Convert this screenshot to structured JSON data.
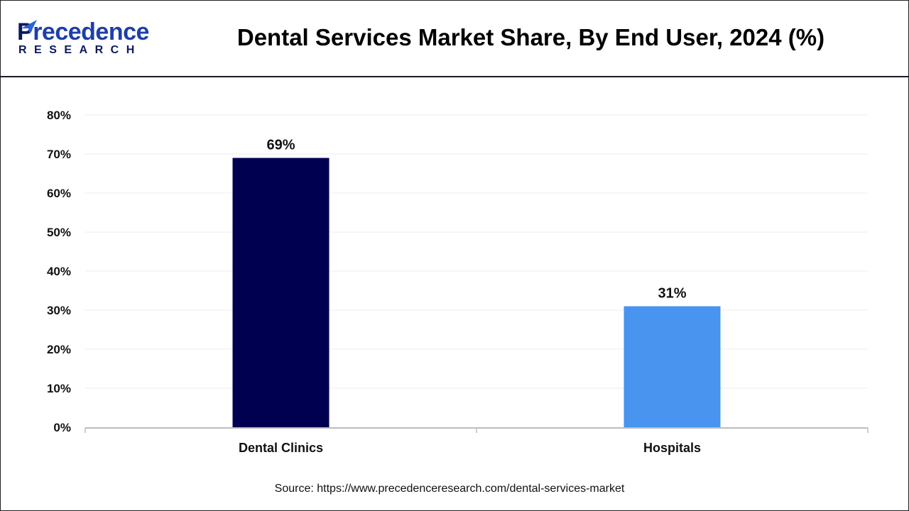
{
  "header": {
    "logo_text": "Precedence",
    "logo_subtext": "RESEARCH",
    "title": "Dental Services Market Share, By End User, 2024 (%)"
  },
  "chart_data": {
    "type": "bar",
    "title": "Dental Services Market Share, By End User, 2024 (%)",
    "categories": [
      "Dental Clinics",
      "Hospitals"
    ],
    "values": [
      69,
      31
    ],
    "data_labels": [
      "69%",
      "31%"
    ],
    "colors": [
      "#000050",
      "#4894EE"
    ],
    "ylim": [
      0,
      80
    ],
    "yticks": [
      "0%",
      "10%",
      "20%",
      "30%",
      "40%",
      "50%",
      "60%",
      "70%",
      "80%"
    ],
    "grid": true,
    "xlabel": "",
    "ylabel": ""
  },
  "source": "Source: https://www.precedenceresearch.com/dental-services-market"
}
